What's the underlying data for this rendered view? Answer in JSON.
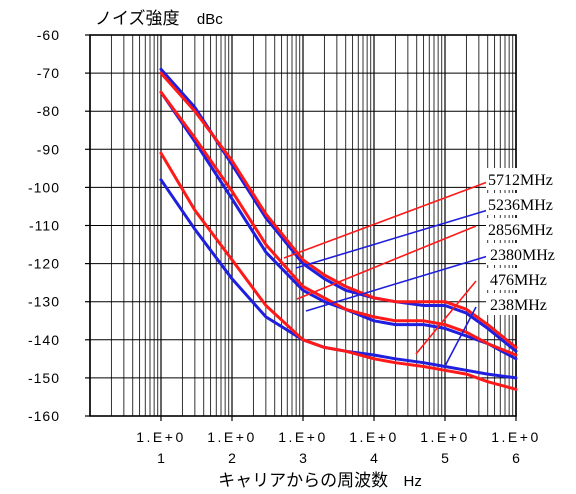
{
  "chart_data": {
    "type": "line",
    "title": "",
    "ylabel": "ノイズ強度",
    "yunit": "dBc",
    "xlabel": "キャリアからの周波数",
    "xunit": "Hz",
    "x_scale": "log",
    "xlim": [
      1,
      1000000
    ],
    "ylim": [
      -160,
      -60
    ],
    "grid": true,
    "y_ticks": [
      "-60",
      "-70",
      "-80",
      "-90",
      "-100",
      "-110",
      "-120",
      "-130",
      "-140",
      "-150",
      "-160"
    ],
    "x_ticks": [
      {
        "top": "1.E+0",
        "bottom": "1",
        "value": 10
      },
      {
        "top": "1.E+0",
        "bottom": "2",
        "value": 100
      },
      {
        "top": "1.E+0",
        "bottom": "3",
        "value": 1000
      },
      {
        "top": "1.E+0",
        "bottom": "4",
        "value": 10000
      },
      {
        "top": "1.E+0",
        "bottom": "5",
        "value": 100000
      },
      {
        "top": "1.E+0",
        "bottom": "6",
        "value": 1000000
      }
    ],
    "series_colors": {
      "red": "#ff1a1a",
      "blue": "#1f1fdd"
    },
    "series": [
      {
        "name": "5712MHz",
        "color": "red",
        "x": [
          10,
          30,
          100,
          300,
          1000,
          2000,
          4000,
          10000,
          20000,
          50000,
          100000,
          200000,
          400000,
          1000000
        ],
        "values": [
          -70,
          -80,
          -93,
          -107,
          -119,
          -123,
          -126,
          -129,
          -130,
          -130,
          -130,
          -132,
          -136,
          -142
        ]
      },
      {
        "name": "5236MHz",
        "color": "blue",
        "x": [
          10,
          30,
          100,
          300,
          1000,
          2000,
          4000,
          10000,
          20000,
          50000,
          100000,
          200000,
          400000,
          1000000
        ],
        "values": [
          -69,
          -79,
          -94,
          -108,
          -120,
          -124,
          -127,
          -129,
          -130,
          -131,
          -131,
          -133,
          -137,
          -143
        ]
      },
      {
        "name": "2856MHz",
        "color": "red",
        "x": [
          10,
          30,
          100,
          300,
          1000,
          2000,
          4000,
          10000,
          20000,
          50000,
          100000,
          200000,
          400000,
          1000000
        ],
        "values": [
          -75,
          -87,
          -101,
          -115,
          -126,
          -129,
          -132,
          -134,
          -135,
          -135,
          -136,
          -138,
          -141,
          -144
        ]
      },
      {
        "name": "2380MHz",
        "color": "blue",
        "x": [
          10,
          30,
          100,
          300,
          1000,
          2000,
          4000,
          10000,
          20000,
          50000,
          100000,
          200000,
          400000,
          1000000
        ],
        "values": [
          -75,
          -88,
          -103,
          -117,
          -127,
          -130,
          -132,
          -135,
          -136,
          -136,
          -137,
          -139,
          -141,
          -145
        ]
      },
      {
        "name": "476MHz",
        "color": "red",
        "x": [
          10,
          30,
          100,
          300,
          1000,
          2000,
          4000,
          10000,
          20000,
          50000,
          100000,
          200000,
          400000,
          1000000
        ],
        "values": [
          -91,
          -106,
          -119,
          -131,
          -140,
          -142,
          -143,
          -145,
          -146,
          -147,
          -148,
          -149,
          -151,
          -153
        ]
      },
      {
        "name": "238MHz",
        "color": "blue",
        "x": [
          10,
          30,
          100,
          300,
          1000,
          2000,
          4000,
          10000,
          20000,
          50000,
          100000,
          200000,
          400000,
          1000000
        ],
        "values": [
          -98,
          -111,
          -124,
          -134,
          -140,
          -142,
          -143,
          -144,
          -145,
          -146,
          -147,
          -148,
          -149,
          -150
        ]
      }
    ]
  }
}
